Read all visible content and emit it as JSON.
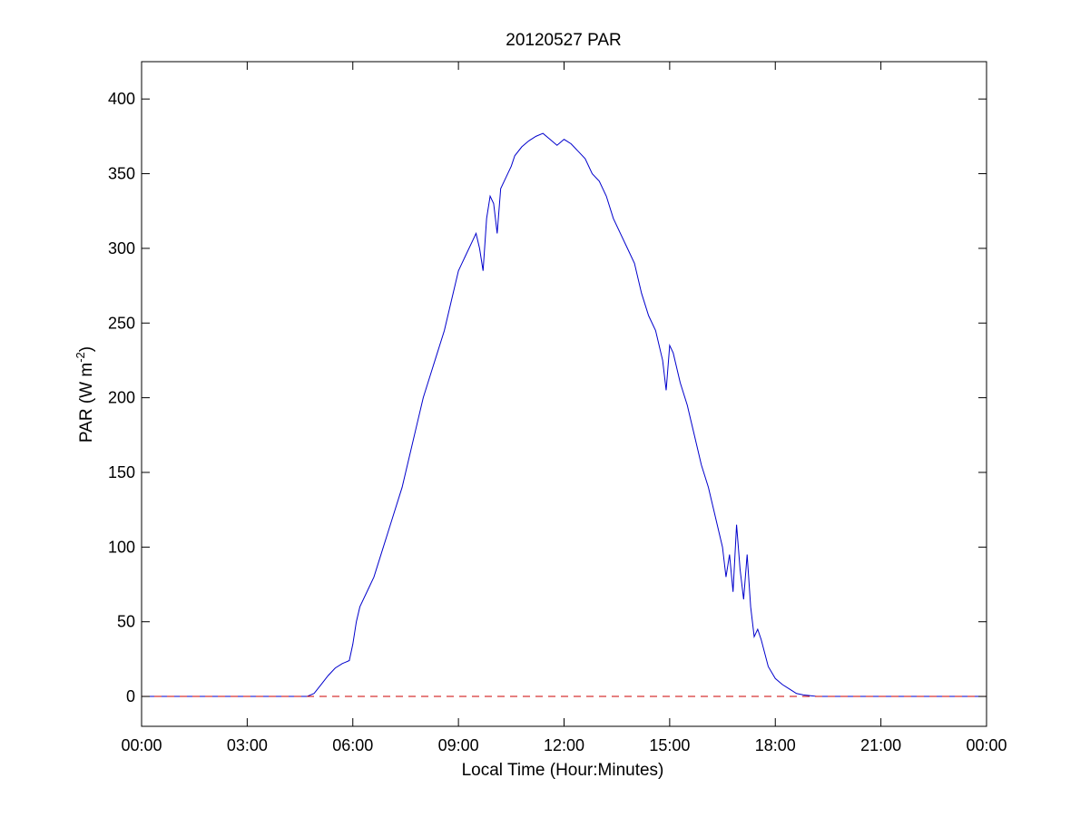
{
  "chart_data": {
    "type": "line",
    "title": "20120527 PAR",
    "xlabel": "Local Time (Hour:Minutes)",
    "ylabel": {
      "base": "PAR (W m",
      "superscript": "-2",
      "close": ")"
    },
    "xlim": [
      0,
      24
    ],
    "ylim": [
      -20,
      425
    ],
    "x_ticks": [
      0,
      3,
      6,
      9,
      12,
      15,
      18,
      21,
      24
    ],
    "x_tick_labels": [
      "00:00",
      "03:00",
      "06:00",
      "09:00",
      "12:00",
      "15:00",
      "18:00",
      "21:00",
      "00:00"
    ],
    "y_ticks": [
      0,
      50,
      100,
      150,
      200,
      250,
      300,
      350,
      400
    ],
    "y_tick_labels": [
      "0",
      "50",
      "100",
      "150",
      "200",
      "250",
      "300",
      "350",
      "400"
    ],
    "grid": false,
    "series": [
      {
        "style": "solid",
        "color": "#0000cc",
        "x": [
          0,
          4.7,
          4.9,
          5.1,
          5.3,
          5.5,
          5.7,
          5.9,
          6.0,
          6.1,
          6.2,
          6.4,
          6.6,
          6.8,
          7.0,
          7.2,
          7.4,
          7.6,
          7.8,
          8.0,
          8.2,
          8.4,
          8.6,
          8.8,
          9.0,
          9.2,
          9.4,
          9.5,
          9.6,
          9.7,
          9.8,
          9.9,
          10.0,
          10.1,
          10.2,
          10.3,
          10.4,
          10.5,
          10.6,
          10.8,
          11.0,
          11.2,
          11.4,
          11.6,
          11.8,
          12.0,
          12.2,
          12.4,
          12.6,
          12.8,
          13.0,
          13.2,
          13.4,
          13.6,
          13.8,
          14.0,
          14.2,
          14.4,
          14.6,
          14.8,
          14.9,
          15.0,
          15.1,
          15.3,
          15.5,
          15.7,
          15.9,
          16.1,
          16.3,
          16.5,
          16.6,
          16.7,
          16.8,
          16.9,
          17.0,
          17.1,
          17.2,
          17.3,
          17.4,
          17.5,
          17.6,
          17.8,
          18.0,
          18.2,
          18.4,
          18.6,
          18.8,
          19.0,
          19.2,
          19.5,
          24
        ],
        "y": [
          0,
          0,
          2,
          8,
          14,
          19,
          22,
          24,
          35,
          50,
          60,
          70,
          80,
          95,
          110,
          125,
          140,
          160,
          180,
          200,
          215,
          230,
          245,
          265,
          285,
          295,
          305,
          310,
          300,
          285,
          320,
          335,
          330,
          310,
          340,
          345,
          350,
          355,
          362,
          368,
          372,
          375,
          377,
          373,
          369,
          373,
          370,
          365,
          360,
          350,
          345,
          335,
          320,
          310,
          300,
          290,
          270,
          255,
          245,
          225,
          205,
          235,
          230,
          210,
          195,
          175,
          155,
          140,
          120,
          100,
          80,
          95,
          70,
          115,
          85,
          65,
          95,
          60,
          40,
          45,
          38,
          20,
          12,
          8,
          5,
          2,
          1,
          0.5,
          0,
          0,
          0
        ]
      },
      {
        "style": "dashed",
        "color": "#cc0000",
        "x": [
          0,
          24
        ],
        "y": [
          0,
          0
        ]
      }
    ]
  }
}
